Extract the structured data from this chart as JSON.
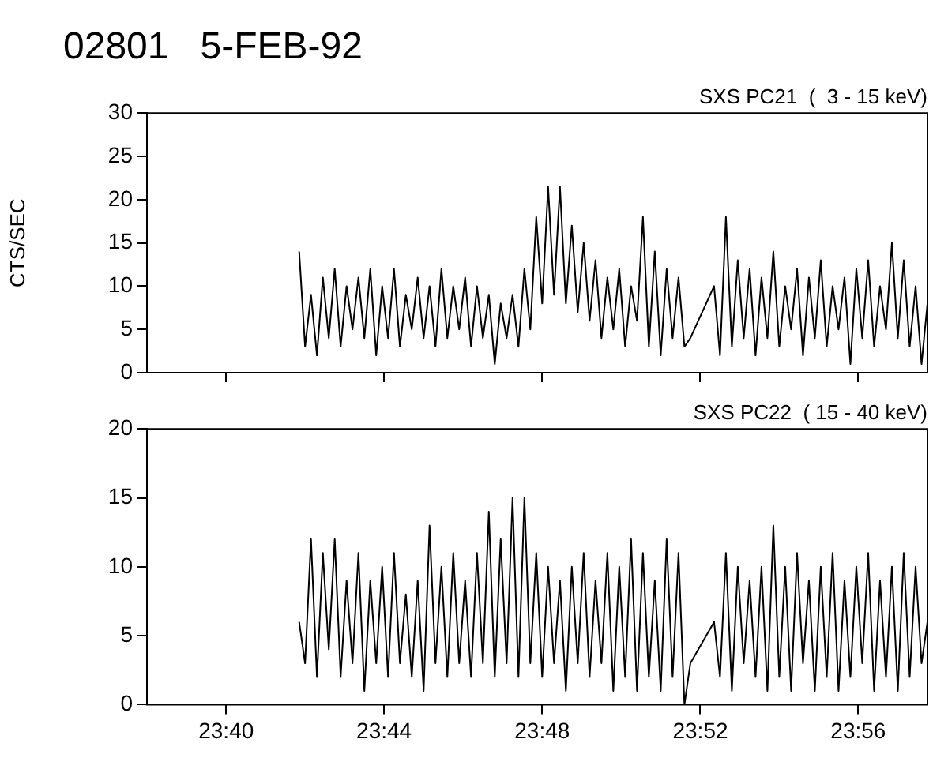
{
  "chart_data": [
    {
      "type": "line",
      "title": "02801   5-FEB-92",
      "subtitle": "SXS PC21  (  3 - 15 keV)",
      "ylabel": "CTS/SEC",
      "x": [
        23.6975,
        23.7,
        23.7025,
        23.705,
        23.7075,
        23.71,
        23.7125,
        23.715,
        23.7175,
        23.72,
        23.7225,
        23.725,
        23.7275,
        23.73,
        23.7325,
        23.735,
        23.7375,
        23.74,
        23.7425,
        23.745,
        23.7475,
        23.75,
        23.7525,
        23.755,
        23.7575,
        23.76,
        23.7625,
        23.765,
        23.7675,
        23.77,
        23.7725,
        23.775,
        23.7775,
        23.78,
        23.7825,
        23.785,
        23.7875,
        23.79,
        23.7925,
        23.795,
        23.7975,
        23.8,
        23.8025,
        23.805,
        23.8075,
        23.81,
        23.8125,
        23.815,
        23.8175,
        23.82,
        23.8225,
        23.825,
        23.8275,
        23.83,
        23.8325,
        23.835,
        23.8375,
        23.84,
        23.8425,
        23.845,
        23.8475,
        23.85,
        23.8525,
        23.855,
        23.8575,
        23.86,
        23.8625,
        23.8725,
        23.875,
        23.8775,
        23.88,
        23.8825,
        23.885,
        23.8875,
        23.89,
        23.8925,
        23.895,
        23.8975,
        23.9,
        23.9025,
        23.905,
        23.9075,
        23.91,
        23.9125,
        23.915,
        23.9175,
        23.92,
        23.9225,
        23.925,
        23.9275,
        23.93,
        23.9325,
        23.935,
        23.9375,
        23.94,
        23.9425,
        23.945,
        23.9475,
        23.95,
        23.9525,
        23.955,
        23.9575,
        23.96,
        23.9625
      ],
      "series": [
        {
          "color": "#000000",
          "values": [
            14,
            3,
            9,
            2,
            11,
            4,
            12,
            3,
            10,
            5,
            11,
            4,
            12,
            2,
            10,
            4,
            12,
            3,
            9,
            5,
            11,
            4,
            10,
            3,
            12,
            4,
            10,
            5,
            11,
            3,
            10,
            4,
            9,
            1,
            8,
            4,
            9,
            3,
            12,
            5,
            18,
            8,
            21.5,
            9,
            21.5,
            8,
            17,
            7,
            15,
            6,
            13,
            4,
            11,
            5,
            12,
            3,
            10,
            6,
            18,
            3,
            14,
            2,
            12,
            4,
            11,
            3,
            4,
            10,
            2,
            18,
            3,
            13,
            4,
            12,
            2,
            11,
            4,
            14,
            3,
            10,
            5,
            12,
            2,
            11,
            4,
            13,
            3,
            10,
            5,
            11,
            1,
            12,
            4,
            13,
            3,
            10,
            5,
            15,
            4,
            13,
            3,
            10,
            1,
            8
          ]
        }
      ],
      "xlim": [
        23.6333,
        23.9625
      ],
      "xticks": [
        {
          "value": 23.6667,
          "label": null
        },
        {
          "value": 23.7333,
          "label": null
        },
        {
          "value": 23.8,
          "label": null
        },
        {
          "value": 23.8667,
          "label": null
        },
        {
          "value": 23.9333,
          "label": null
        }
      ],
      "ylim": [
        0,
        30
      ],
      "yticks": [
        0,
        5,
        10,
        15,
        20,
        25,
        30
      ],
      "tick_labels": "y",
      "marker": "none",
      "line_style": "solid",
      "grid": false,
      "legend": false
    },
    {
      "type": "line",
      "title": "SXS PC22  ( 15 - 40 keV)",
      "x": [
        23.6975,
        23.7,
        23.7025,
        23.705,
        23.7075,
        23.71,
        23.7125,
        23.715,
        23.7175,
        23.72,
        23.7225,
        23.725,
        23.7275,
        23.73,
        23.7325,
        23.735,
        23.7375,
        23.74,
        23.7425,
        23.745,
        23.7475,
        23.75,
        23.7525,
        23.755,
        23.7575,
        23.76,
        23.7625,
        23.765,
        23.7675,
        23.77,
        23.7725,
        23.775,
        23.7775,
        23.78,
        23.7825,
        23.785,
        23.7875,
        23.79,
        23.7925,
        23.795,
        23.7975,
        23.8,
        23.8025,
        23.805,
        23.8075,
        23.81,
        23.8125,
        23.815,
        23.8175,
        23.82,
        23.8225,
        23.825,
        23.8275,
        23.83,
        23.8325,
        23.835,
        23.8375,
        23.84,
        23.8425,
        23.845,
        23.8475,
        23.85,
        23.8525,
        23.855,
        23.8575,
        23.86,
        23.8625,
        23.8725,
        23.875,
        23.8775,
        23.88,
        23.8825,
        23.885,
        23.8875,
        23.89,
        23.8925,
        23.895,
        23.8975,
        23.9,
        23.9025,
        23.905,
        23.9075,
        23.91,
        23.9125,
        23.915,
        23.9175,
        23.92,
        23.9225,
        23.925,
        23.9275,
        23.93,
        23.9325,
        23.935,
        23.9375,
        23.94,
        23.9425,
        23.945,
        23.9475,
        23.95,
        23.9525,
        23.955,
        23.9575,
        23.96,
        23.9625
      ],
      "series": [
        {
          "color": "#000000",
          "values": [
            6,
            3,
            12,
            2,
            11,
            4,
            12,
            2,
            9,
            3,
            11,
            1,
            9,
            3,
            10,
            2,
            11,
            3,
            8,
            2,
            9,
            1,
            13,
            3,
            10,
            2,
            11,
            3,
            9,
            2,
            11,
            3,
            14,
            2,
            12,
            3,
            15,
            2,
            15,
            3,
            11,
            2,
            10,
            3,
            9,
            1,
            10,
            3,
            11,
            2,
            9,
            3,
            11,
            1,
            10,
            2,
            12,
            1,
            11,
            2,
            9,
            1,
            12,
            2,
            11,
            0,
            3,
            6,
            2,
            11,
            1,
            10,
            3,
            9,
            2,
            10,
            1,
            13,
            2,
            10,
            1,
            11,
            3,
            9,
            1,
            10,
            2,
            11,
            1,
            9,
            2,
            10,
            3,
            11,
            1,
            9,
            2,
            10,
            1,
            11,
            2,
            10,
            3,
            6
          ]
        }
      ],
      "xlim": [
        23.6333,
        23.9625
      ],
      "xticks": [
        {
          "value": 23.6667,
          "label": "23:40"
        },
        {
          "value": 23.7333,
          "label": "23:44"
        },
        {
          "value": 23.8,
          "label": "23:48"
        },
        {
          "value": 23.8667,
          "label": "23:52"
        },
        {
          "value": 23.9333,
          "label": "23:56"
        }
      ],
      "ylim": [
        0,
        20
      ],
      "yticks": [
        0,
        5,
        10,
        15,
        20
      ],
      "marker": "none",
      "line_style": "solid",
      "grid": false,
      "legend": false
    }
  ]
}
